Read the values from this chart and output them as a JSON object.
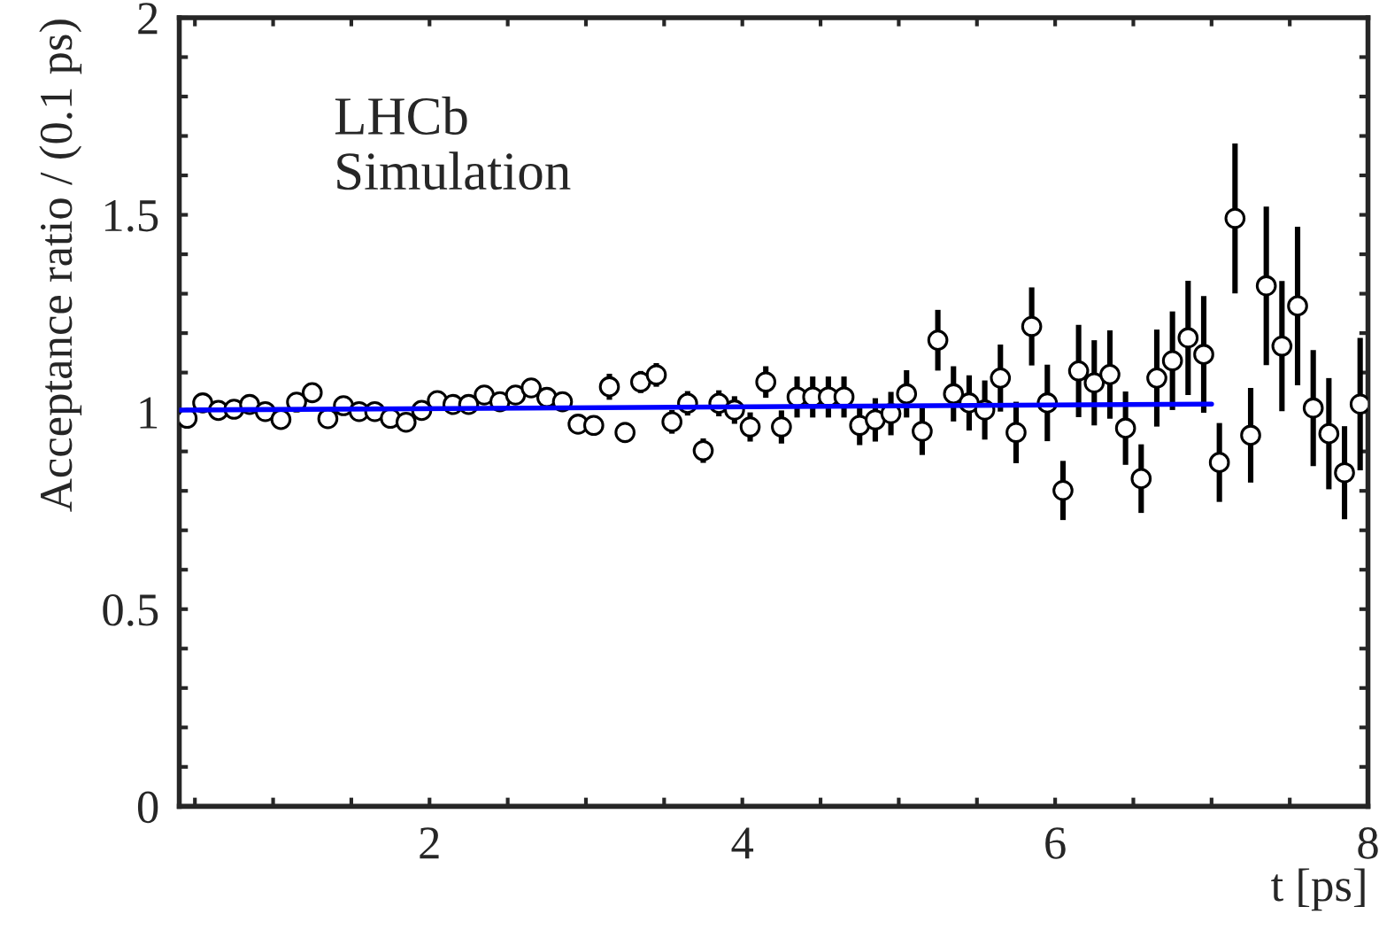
{
  "chart_data": {
    "type": "scatter",
    "xlabel": "t [ps]",
    "ylabel": "Acceptance ratio / (0.1 ps)",
    "annotations": [
      "LHCb",
      "Simulation"
    ],
    "x": [
      0.45,
      0.55,
      0.65,
      0.75,
      0.85,
      0.95,
      1.05,
      1.15,
      1.25,
      1.35,
      1.45,
      1.55,
      1.65,
      1.75,
      1.85,
      1.95,
      2.05,
      2.15,
      2.25,
      2.35,
      2.45,
      2.55,
      2.65,
      2.75,
      2.85,
      2.95,
      3.05,
      3.15,
      3.25,
      3.35,
      3.45,
      3.55,
      3.65,
      3.75,
      3.85,
      3.95,
      4.05,
      4.15,
      4.25,
      4.35,
      4.45,
      4.55,
      4.65,
      4.75,
      4.85,
      4.95,
      5.05,
      5.15,
      5.25,
      5.35,
      5.45,
      5.55,
      5.65,
      5.75,
      5.85,
      5.95,
      6.05,
      6.15,
      6.25,
      6.35,
      6.45,
      6.55,
      6.65,
      6.75,
      6.85,
      6.95,
      7.05,
      7.15,
      7.25,
      7.35,
      7.45,
      7.55,
      7.65,
      7.75,
      7.85,
      7.95
    ],
    "series": [
      {
        "color": "#000000",
        "marker": "circle",
        "values": [
          0.984,
          1.023,
          1.004,
          1.007,
          1.019,
          1.001,
          0.981,
          1.025,
          1.049,
          0.983,
          1.016,
          1.001,
          1.001,
          0.984,
          0.974,
          1.004,
          1.029,
          1.019,
          1.019,
          1.043,
          1.026,
          1.043,
          1.061,
          1.037,
          1.026,
          0.969,
          0.966,
          1.064,
          0.948,
          1.076,
          1.094,
          0.975,
          1.022,
          0.902,
          1.022,
          1.005,
          0.962,
          1.076,
          0.962,
          1.038,
          1.038,
          1.038,
          1.038,
          0.966,
          0.98,
          0.996,
          1.046,
          0.951,
          1.182,
          1.046,
          1.023,
          1.005,
          1.086,
          0.948,
          1.217,
          1.023,
          0.801,
          1.104,
          1.074,
          1.095,
          0.959,
          0.831,
          1.086,
          1.13,
          1.188,
          1.146,
          0.872,
          1.491,
          0.941,
          1.32,
          1.167,
          1.269,
          1.01,
          0.945,
          0.846,
          1.02
        ],
        "errors": [
          0.01,
          0.01,
          0.01,
          0.01,
          0.01,
          0.01,
          0.01,
          0.012,
          0.012,
          0.012,
          0.012,
          0.013,
          0.013,
          0.014,
          0.014,
          0.015,
          0.015,
          0.016,
          0.016,
          0.017,
          0.018,
          0.019,
          0.02,
          0.021,
          0.022,
          0.023,
          0.024,
          0.033,
          0.026,
          0.028,
          0.03,
          0.03,
          0.031,
          0.031,
          0.033,
          0.035,
          0.037,
          0.04,
          0.042,
          0.052,
          0.052,
          0.052,
          0.052,
          0.05,
          0.055,
          0.055,
          0.06,
          0.06,
          0.077,
          0.07,
          0.07,
          0.075,
          0.085,
          0.078,
          0.099,
          0.097,
          0.075,
          0.117,
          0.108,
          0.112,
          0.093,
          0.087,
          0.123,
          0.125,
          0.145,
          0.148,
          0.1,
          0.19,
          0.12,
          0.201,
          0.165,
          0.201,
          0.147,
          0.141,
          0.118,
          0.168
        ]
      },
      {
        "type": "line",
        "color": "#0000ff",
        "marker": "none",
        "line_style": "solid",
        "x": [
          0.4,
          7.0
        ],
        "values": [
          1.005,
          1.02
        ]
      }
    ],
    "xlim": [
      0.4,
      8
    ],
    "ylim": [
      0,
      2
    ],
    "xticks": [
      {
        "value": 0.5,
        "label": null
      },
      {
        "value": 1,
        "label": null
      },
      {
        "value": 1.5,
        "label": null
      },
      2,
      {
        "value": 2.5,
        "label": null
      },
      {
        "value": 3,
        "label": null
      },
      {
        "value": 3.5,
        "label": null
      },
      4,
      {
        "value": 4.5,
        "label": null
      },
      {
        "value": 5,
        "label": null
      },
      {
        "value": 5.5,
        "label": null
      },
      6,
      {
        "value": 6.5,
        "label": null
      },
      {
        "value": 7,
        "label": null
      },
      {
        "value": 7.5,
        "label": null
      },
      8
    ],
    "yticks": [
      0,
      {
        "value": 0.1,
        "label": null
      },
      {
        "value": 0.2,
        "label": null
      },
      {
        "value": 0.3,
        "label": null
      },
      {
        "value": 0.4,
        "label": null
      },
      0.5,
      {
        "value": 0.6,
        "label": null
      },
      {
        "value": 0.7,
        "label": null
      },
      {
        "value": 0.8,
        "label": null
      },
      {
        "value": 0.9,
        "label": null
      },
      1,
      {
        "value": 1.1,
        "label": null
      },
      {
        "value": 1.2,
        "label": null
      },
      {
        "value": 1.3,
        "label": null
      },
      {
        "value": 1.4,
        "label": null
      },
      1.5,
      {
        "value": 1.6,
        "label": null
      },
      {
        "value": 1.7,
        "label": null
      },
      {
        "value": 1.8,
        "label": null
      },
      {
        "value": 1.9,
        "label": null
      },
      2
    ]
  }
}
